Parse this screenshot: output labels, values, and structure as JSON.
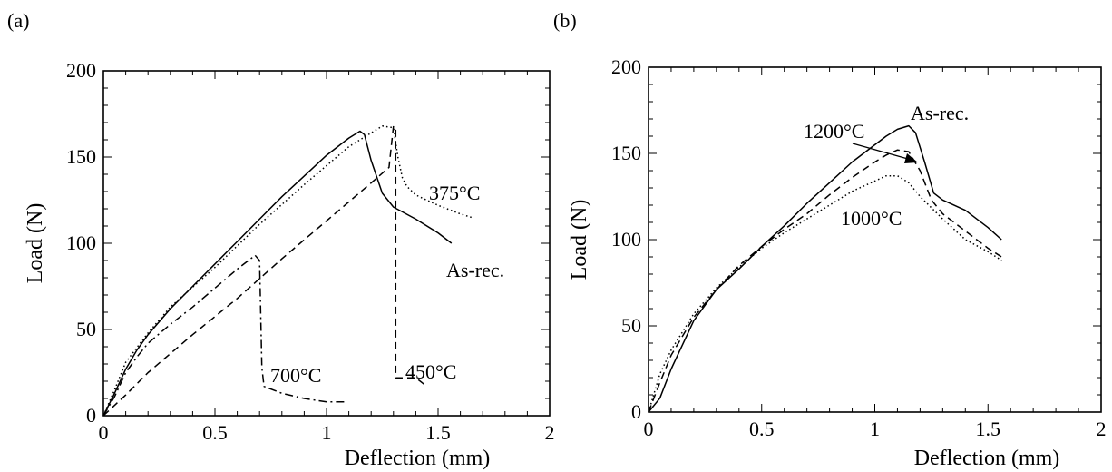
{
  "chart_data": [
    {
      "type": "line",
      "panel_label": "(a)",
      "xlabel": "Deflection (mm)",
      "ylabel": "Load (N)",
      "xlim": [
        0,
        2
      ],
      "ylim": [
        0,
        200
      ],
      "xticks": [
        "0",
        "0.5",
        "1",
        "1.5",
        "2"
      ],
      "yticks": [
        "0",
        "50",
        "100",
        "150",
        "200"
      ],
      "grid": false,
      "series": [
        {
          "name": "As-rec.",
          "style": "solid",
          "x": [
            0,
            0.05,
            0.1,
            0.15,
            0.2,
            0.3,
            0.4,
            0.5,
            0.6,
            0.7,
            0.8,
            0.9,
            1.0,
            1.05,
            1.1,
            1.15,
            1.17,
            1.2,
            1.25,
            1.3,
            1.4,
            1.5,
            1.56
          ],
          "y": [
            0,
            13,
            27,
            38,
            47,
            62,
            75,
            88,
            101,
            114,
            127,
            139,
            151,
            156,
            161,
            165,
            163,
            148,
            129,
            121,
            114,
            106,
            100
          ]
        },
        {
          "name": "375°C",
          "style": "dotted",
          "x": [
            0,
            0.05,
            0.1,
            0.2,
            0.3,
            0.5,
            0.7,
            0.9,
            1.1,
            1.25,
            1.3,
            1.32,
            1.34,
            1.36,
            1.4,
            1.5,
            1.6,
            1.65
          ],
          "y": [
            0,
            15,
            31,
            48,
            63,
            86,
            111,
            134,
            156,
            168,
            167,
            150,
            138,
            133,
            128,
            122,
            117,
            115
          ]
        },
        {
          "name": "450°C",
          "style": "dashed",
          "x": [
            0,
            0.1,
            0.2,
            0.4,
            0.6,
            0.8,
            1.0,
            1.2,
            1.28,
            1.3,
            1.31,
            1.31,
            1.4,
            1.44
          ],
          "y": [
            0,
            12,
            25,
            47,
            68,
            91,
            113,
            135,
            144,
            168,
            166,
            22,
            22,
            18
          ]
        },
        {
          "name": "700°C",
          "style": "dash-dot",
          "x": [
            0,
            0.05,
            0.1,
            0.15,
            0.2,
            0.3,
            0.4,
            0.5,
            0.6,
            0.68,
            0.7,
            0.71,
            0.72,
            0.74,
            0.8,
            0.9,
            1.0,
            1.08
          ],
          "y": [
            0,
            11,
            25,
            34,
            42,
            53,
            63,
            74,
            85,
            93,
            90,
            28,
            17,
            16,
            13,
            10,
            8,
            8
          ]
        }
      ],
      "annotations": [
        "375°C",
        "As-rec.",
        "700°C",
        "450°C"
      ]
    },
    {
      "type": "line",
      "panel_label": "(b)",
      "xlabel": "Deflection (mm)",
      "ylabel": "Load (N)",
      "xlim": [
        0,
        2
      ],
      "ylim": [
        0,
        200
      ],
      "xticks": [
        "0",
        "0.5",
        "1",
        "1.5",
        "2"
      ],
      "yticks": [
        "0",
        "50",
        "100",
        "150",
        "200"
      ],
      "grid": false,
      "series": [
        {
          "name": "As-rec.",
          "style": "solid",
          "x": [
            0,
            0.05,
            0.1,
            0.2,
            0.3,
            0.4,
            0.5,
            0.6,
            0.7,
            0.8,
            0.9,
            1.0,
            1.05,
            1.1,
            1.15,
            1.18,
            1.22,
            1.26,
            1.3,
            1.4,
            1.5,
            1.56
          ],
          "y": [
            0,
            8,
            25,
            53,
            71,
            83,
            96,
            108,
            121,
            133,
            145,
            155,
            160,
            164,
            166,
            162,
            145,
            127,
            123,
            117,
            107,
            100
          ]
        },
        {
          "name": "1200°C",
          "style": "dashed",
          "x": [
            0,
            0.05,
            0.1,
            0.2,
            0.3,
            0.4,
            0.5,
            0.6,
            0.7,
            0.8,
            0.9,
            1.0,
            1.05,
            1.1,
            1.15,
            1.2,
            1.25,
            1.3,
            1.4,
            1.5,
            1.56
          ],
          "y": [
            0,
            17,
            33,
            55,
            71,
            85,
            96,
            106,
            115,
            126,
            136,
            145,
            149,
            152,
            151,
            140,
            123,
            115,
            105,
            95,
            90
          ]
        },
        {
          "name": "1000°C",
          "style": "dotted",
          "x": [
            0,
            0.05,
            0.1,
            0.2,
            0.3,
            0.4,
            0.5,
            0.6,
            0.7,
            0.8,
            0.9,
            1.0,
            1.05,
            1.1,
            1.15,
            1.2,
            1.3,
            1.4,
            1.5,
            1.56
          ],
          "y": [
            0,
            22,
            36,
            57,
            72,
            84,
            95,
            104,
            112,
            120,
            128,
            134,
            137,
            137,
            133,
            125,
            112,
            100,
            93,
            88
          ]
        }
      ],
      "annotations": [
        "1200°C",
        "As-rec.",
        "1000°C"
      ]
    }
  ]
}
